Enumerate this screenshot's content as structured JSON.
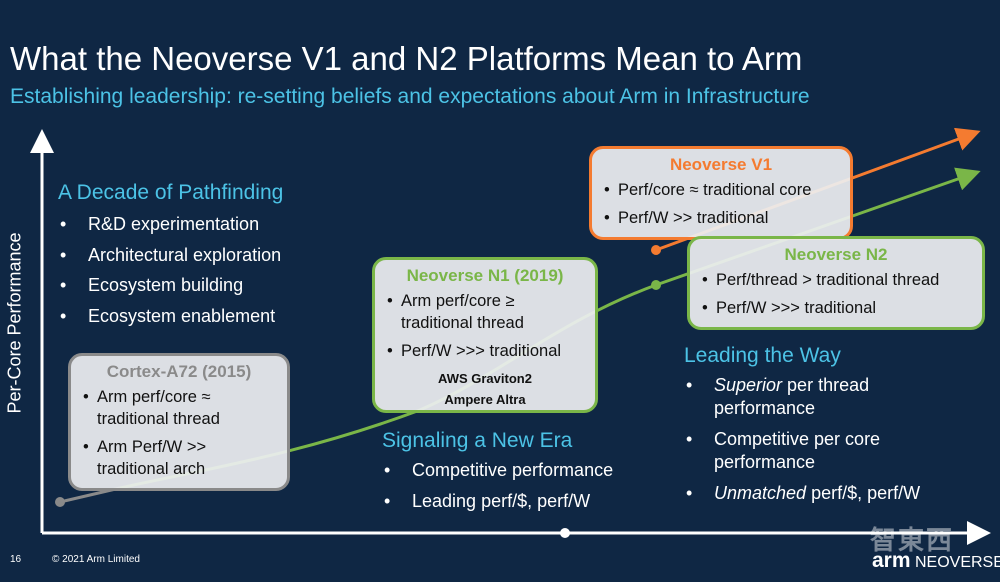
{
  "title": "What the Neoverse V1 and N2 Platforms Mean to Arm",
  "subtitle": "Establishing leadership: re-setting beliefs and expectations about Arm in Infrastructure",
  "y_axis_label": "Per-Core Performance",
  "pathfinding": {
    "title": "A Decade of Pathfinding",
    "items": [
      "R&D experimentation",
      "Architectural exploration",
      "Ecosystem building",
      "Ecosystem enablement"
    ]
  },
  "cortex_box": {
    "title": "Cortex-A72 (2015)",
    "items": [
      "Arm perf/core ≈ traditional thread",
      "Arm Perf/W >> traditional arch"
    ]
  },
  "n1_box": {
    "title": "Neoverse N1 (2019)",
    "items": [
      "Arm perf/core ≥ traditional thread",
      "Perf/W >>> traditional"
    ],
    "customers": [
      "AWS Graviton2",
      "Ampere Altra"
    ]
  },
  "v1_box": {
    "title": "Neoverse V1",
    "items": [
      "Perf/core ≈ traditional core",
      "Perf/W >> traditional"
    ]
  },
  "n2_box": {
    "title": "Neoverse N2",
    "items": [
      "Perf/thread > traditional thread",
      "Perf/W >>> traditional"
    ]
  },
  "signaling": {
    "title": "Signaling a New Era",
    "items": [
      "Competitive performance",
      "Leading perf/$, perf/W"
    ]
  },
  "leading": {
    "title": "Leading the Way",
    "items": [
      {
        "em": "Superior",
        "text": " per thread performance"
      },
      {
        "em": "",
        "text": "Competitive per core performance"
      },
      {
        "em": "Unmatched",
        "text": " perf/$, perf/W"
      }
    ]
  },
  "footer": {
    "page": "16",
    "copyright": "© 2021 Arm Limited",
    "logo_arm": "arm",
    "logo_neoverse": "NEOVERSE",
    "watermark": "智東西"
  },
  "colors": {
    "background": "#0f2744",
    "accent": "#4cc3e6",
    "green": "#7ab648",
    "orange": "#f47b30",
    "gray": "#8a8a8a"
  }
}
